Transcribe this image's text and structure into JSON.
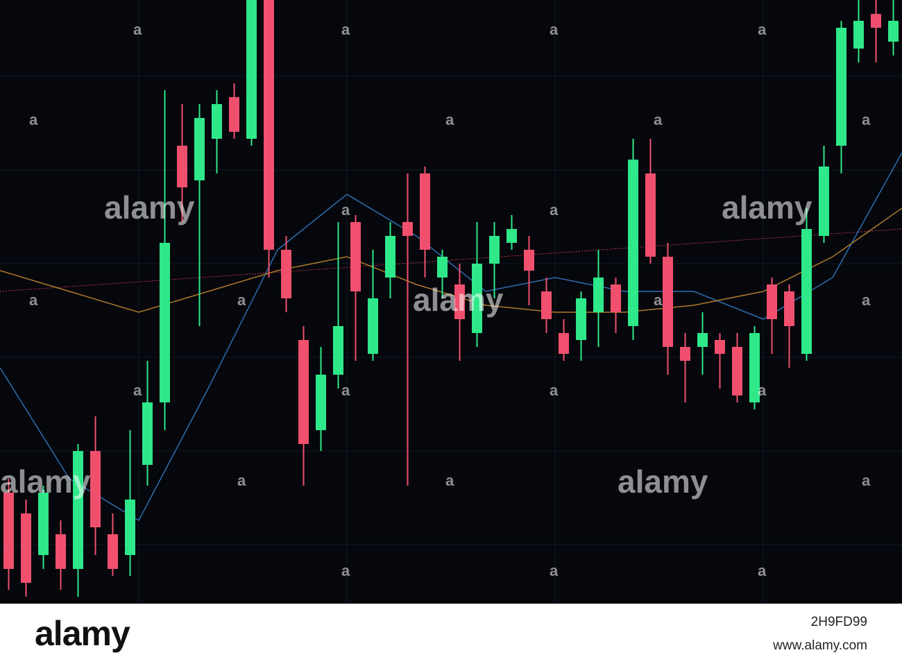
{
  "chart_data": {
    "type": "candlestick",
    "open": [
      160,
      130,
      70,
      100,
      50,
      220,
      100,
      70,
      200,
      290,
      660,
      610,
      670,
      730,
      670,
      870,
      510,
      380,
      250,
      330,
      550,
      360,
      470,
      550,
      620,
      470,
      460,
      390,
      490,
      520,
      510,
      450,
      390,
      380,
      420,
      460,
      400,
      620,
      500,
      370,
      370,
      380,
      370,
      290,
      460,
      450,
      360,
      530,
      660,
      800,
      850,
      810
    ],
    "high": [
      180,
      150,
      170,
      120,
      230,
      270,
      130,
      250,
      350,
      740,
      720,
      720,
      740,
      750,
      870,
      870,
      530,
      400,
      370,
      550,
      560,
      510,
      550,
      620,
      630,
      510,
      490,
      550,
      550,
      560,
      530,
      470,
      410,
      450,
      510,
      470,
      670,
      670,
      520,
      390,
      420,
      390,
      390,
      400,
      470,
      460,
      570,
      660,
      840,
      870,
      870,
      870
    ],
    "low": [
      20,
      10,
      50,
      20,
      10,
      70,
      40,
      40,
      170,
      250,
      550,
      400,
      620,
      670,
      660,
      470,
      420,
      170,
      220,
      310,
      350,
      350,
      440,
      170,
      470,
      440,
      350,
      370,
      440,
      510,
      430,
      390,
      350,
      350,
      370,
      390,
      380,
      490,
      330,
      290,
      330,
      310,
      290,
      280,
      360,
      340,
      350,
      520,
      620,
      780,
      780,
      790
    ],
    "close": [
      50,
      30,
      160,
      50,
      220,
      110,
      50,
      150,
      290,
      520,
      600,
      700,
      720,
      680,
      870,
      510,
      440,
      230,
      330,
      400,
      450,
      440,
      530,
      530,
      510,
      500,
      410,
      490,
      530,
      540,
      480,
      410,
      360,
      440,
      470,
      420,
      640,
      500,
      370,
      350,
      390,
      360,
      300,
      390,
      410,
      400,
      540,
      630,
      830,
      840,
      830,
      840
    ],
    "ylim": [
      0,
      870
    ],
    "up_color": "#2ee88a",
    "down_color": "#f0506e",
    "series": [
      {
        "color": "#2f6fb0",
        "values": [
          340,
          180,
          120,
          310,
          510,
          590,
          530,
          450,
          470,
          450,
          450,
          410,
          470,
          650
        ]
      },
      {
        "color": "#b07a2a",
        "values": [
          480,
          450,
          420,
          450,
          480,
          500,
          460,
          430,
          420,
          420,
          430,
          450,
          500,
          570
        ]
      }
    ]
  },
  "watermark": {
    "logo": "alamy",
    "mark": "a"
  },
  "footer": {
    "logo": "alamy",
    "image_id": "2H9FD99",
    "url": "www.alamy.com"
  }
}
